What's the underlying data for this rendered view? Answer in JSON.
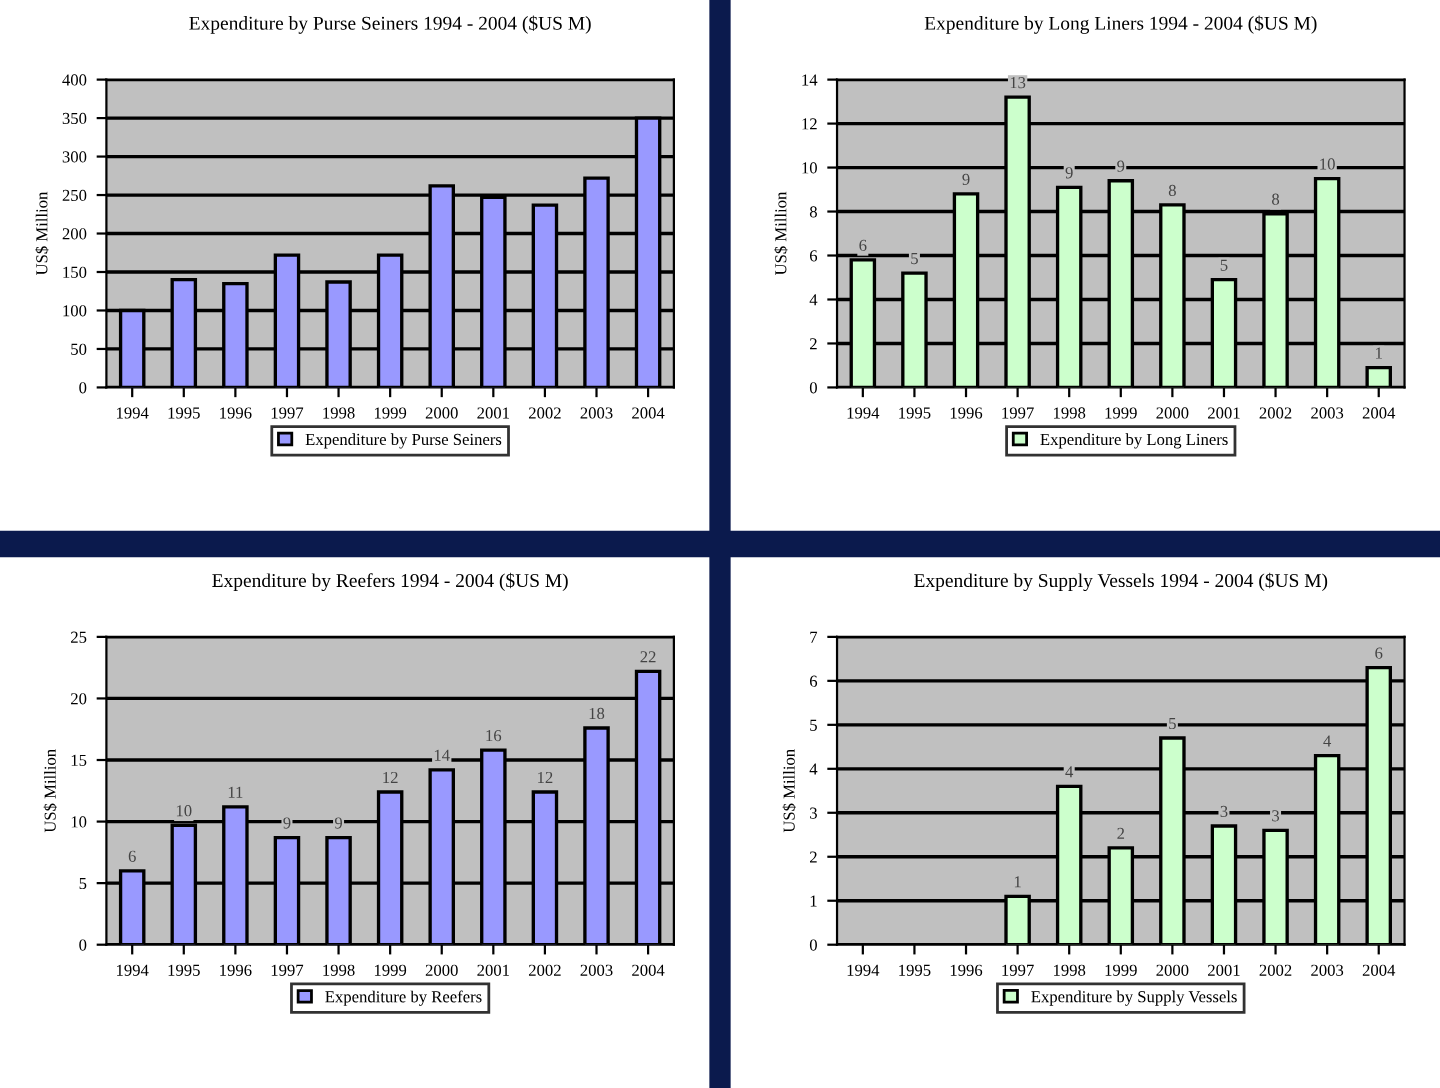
{
  "chart_data": [
    {
      "type": "bar",
      "title": "Expenditure by Purse Seiners 1994 - 2004 ($US M)",
      "ylabel": "US$ Million",
      "categories": [
        "1994",
        "1995",
        "1996",
        "1997",
        "1998",
        "1999",
        "2000",
        "2001",
        "2002",
        "2003",
        "2004"
      ],
      "series": [
        {
          "name": "Expenditure by Purse Seiners",
          "color": "#9999ff",
          "values": [
            100,
            140,
            135,
            172,
            137,
            172,
            262,
            247,
            237,
            272,
            350
          ]
        }
      ],
      "ylim": [
        0,
        400
      ],
      "yticks": [
        0,
        50,
        100,
        150,
        200,
        250,
        300,
        350,
        400
      ],
      "grid": "y",
      "legend": "bottom"
    },
    {
      "type": "bar",
      "title": "Expenditure by Long Liners 1994 - 2004 ($US M)",
      "ylabel": "US$ Million",
      "categories": [
        "1994",
        "1995",
        "1996",
        "1997",
        "1998",
        "1999",
        "2000",
        "2001",
        "2002",
        "2003",
        "2004"
      ],
      "series": [
        {
          "name": "Expenditure by Long Liners",
          "color": "#ccffcc",
          "values": [
            5.8,
            5.2,
            8.8,
            13.2,
            9.1,
            9.4,
            8.3,
            4.9,
            7.9,
            9.5,
            0.9
          ],
          "value_labels": [
            "6",
            "5",
            "9",
            "13",
            "9",
            "9",
            "8",
            "5",
            "8",
            "10",
            "1"
          ]
        }
      ],
      "ylim": [
        0,
        14
      ],
      "yticks": [
        0,
        2,
        4,
        6,
        8,
        10,
        12,
        14
      ],
      "grid": "y",
      "legend": "bottom"
    },
    {
      "type": "bar",
      "title": "Expenditure by Reefers 1994 - 2004 ($US M)",
      "ylabel": "US$ Million",
      "categories": [
        "1994",
        "1995",
        "1996",
        "1997",
        "1998",
        "1999",
        "2000",
        "2001",
        "2002",
        "2003",
        "2004"
      ],
      "series": [
        {
          "name": "Expenditure by Reefers",
          "color": "#9999ff",
          "values": [
            6,
            9.7,
            11.2,
            8.7,
            8.7,
            12.4,
            14.2,
            15.8,
            12.4,
            17.6,
            22.2
          ],
          "value_labels": [
            "6",
            "10",
            "11",
            "9",
            "9",
            "12",
            "14",
            "16",
            "12",
            "18",
            "22"
          ]
        }
      ],
      "ylim": [
        0,
        25
      ],
      "yticks": [
        0,
        5,
        10,
        15,
        20,
        25
      ],
      "grid": "y",
      "legend": "bottom"
    },
    {
      "type": "bar",
      "title": "Expenditure by Supply Vessels 1994 - 2004 ($US M)",
      "ylabel": "US$ Million",
      "categories": [
        "1994",
        "1995",
        "1996",
        "1997",
        "1998",
        "1999",
        "2000",
        "2001",
        "2002",
        "2003",
        "2004"
      ],
      "series": [
        {
          "name": "Expenditure by Supply Vessels",
          "color": "#ccffcc",
          "values": [
            null,
            null,
            null,
            1.1,
            3.6,
            2.2,
            4.7,
            2.7,
            2.6,
            4.3,
            6.3
          ],
          "value_labels": [
            null,
            null,
            null,
            "1",
            "4",
            "2",
            "5",
            "3",
            "3",
            "4",
            "6"
          ]
        }
      ],
      "ylim": [
        0,
        7
      ],
      "yticks": [
        0,
        1,
        2,
        3,
        4,
        5,
        6,
        7
      ],
      "grid": "y",
      "legend": "bottom"
    }
  ]
}
